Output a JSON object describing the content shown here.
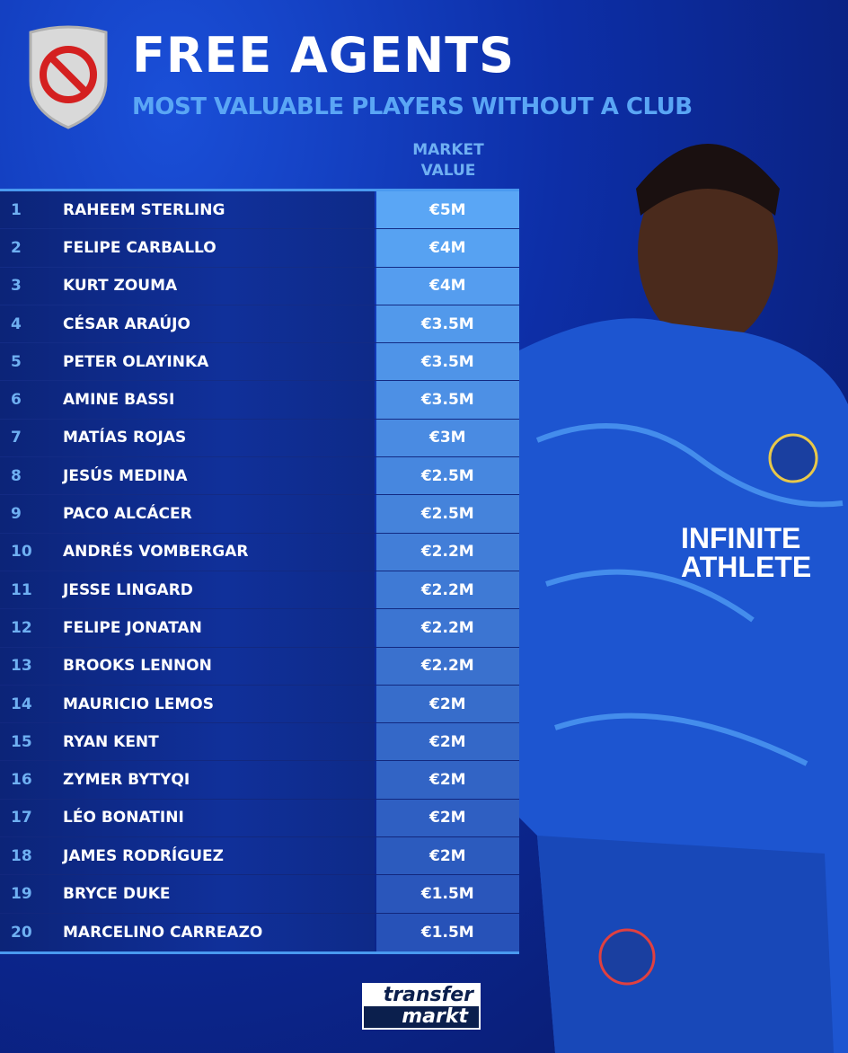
{
  "header": {
    "title": "FREE AGENTS",
    "subtitle": "MOST VALUABLE PLAYERS WITHOUT A CLUB",
    "badge_icon": "prohibited-icon"
  },
  "table": {
    "column_header_line1": "MARKET",
    "column_header_line2": "VALUE",
    "rows": [
      {
        "rank": "1",
        "name": "RAHEEM STERLING",
        "value": "€5M"
      },
      {
        "rank": "2",
        "name": "FELIPE CARBALLO",
        "value": "€4M"
      },
      {
        "rank": "3",
        "name": "KURT ZOUMA",
        "value": "€4M"
      },
      {
        "rank": "4",
        "name": "CÉSAR ARAÚJO",
        "value": "€3.5M"
      },
      {
        "rank": "5",
        "name": "PETER OLAYINKA",
        "value": "€3.5M"
      },
      {
        "rank": "6",
        "name": "AMINE BASSI",
        "value": "€3.5M"
      },
      {
        "rank": "7",
        "name": "MATÍAS ROJAS",
        "value": "€3M"
      },
      {
        "rank": "8",
        "name": "JESÚS MEDINA",
        "value": "€2.5M"
      },
      {
        "rank": "9",
        "name": "PACO ALCÁCER",
        "value": "€2.5M"
      },
      {
        "rank": "10",
        "name": "ANDRÉS VOMBERGAR",
        "value": "€2.2M"
      },
      {
        "rank": "11",
        "name": "JESSE LINGARD",
        "value": "€2.2M"
      },
      {
        "rank": "12",
        "name": "FELIPE JONATAN",
        "value": "€2.2M"
      },
      {
        "rank": "13",
        "name": "BROOKS LENNON",
        "value": "€2.2M"
      },
      {
        "rank": "14",
        "name": "MAURICIO LEMOS",
        "value": "€2M"
      },
      {
        "rank": "15",
        "name": "RYAN KENT",
        "value": "€2M"
      },
      {
        "rank": "16",
        "name": "ZYMER BYTYQI",
        "value": "€2M"
      },
      {
        "rank": "17",
        "name": "LÉO BONATINI",
        "value": "€2M"
      },
      {
        "rank": "18",
        "name": "JAMES RODRÍGUEZ",
        "value": "€2M"
      },
      {
        "rank": "19",
        "name": "BRYCE DUKE",
        "value": "€1.5M"
      },
      {
        "rank": "20",
        "name": "MARCELINO CARREAZO",
        "value": "€1.5M"
      }
    ]
  },
  "player_photo": {
    "shirt_text_line1": "INFINITE",
    "shirt_text_line2": "ATHLETE"
  },
  "logo": {
    "line1": "transfer",
    "line2": "markt"
  },
  "colors": {
    "accent": "#5aa6f5",
    "value_top": "#5aa6f5",
    "value_bottom": "#2752b8",
    "background": "#0d2fa8"
  }
}
